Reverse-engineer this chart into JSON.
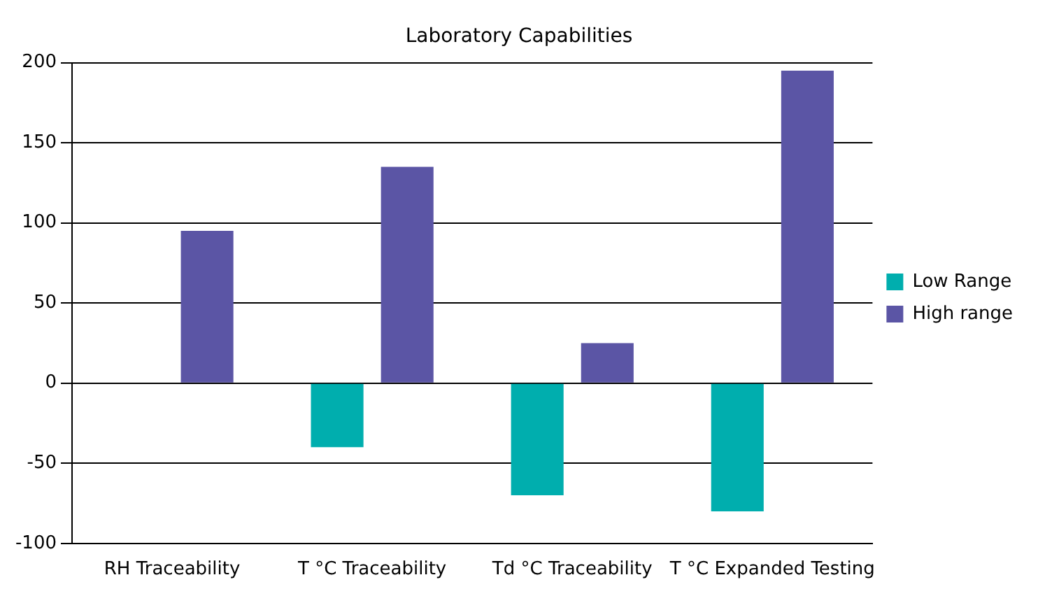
{
  "chart_data": {
    "type": "bar",
    "title": "Laboratory Capabilities",
    "categories": [
      "RH Traceability",
      "T °C Traceability",
      "Td °C Traceability",
      "T °C Expanded Testing"
    ],
    "series": [
      {
        "name": "Low Range",
        "color": "#00aeae",
        "values": [
          0,
          -40,
          -70,
          -80
        ]
      },
      {
        "name": "High range",
        "color": "#5b55a5",
        "values": [
          95,
          135,
          25,
          195
        ]
      }
    ],
    "ylim": [
      -100,
      200
    ],
    "yticks": [
      -100,
      -50,
      0,
      50,
      100,
      150,
      200
    ],
    "grid": "y",
    "legend": "right"
  }
}
